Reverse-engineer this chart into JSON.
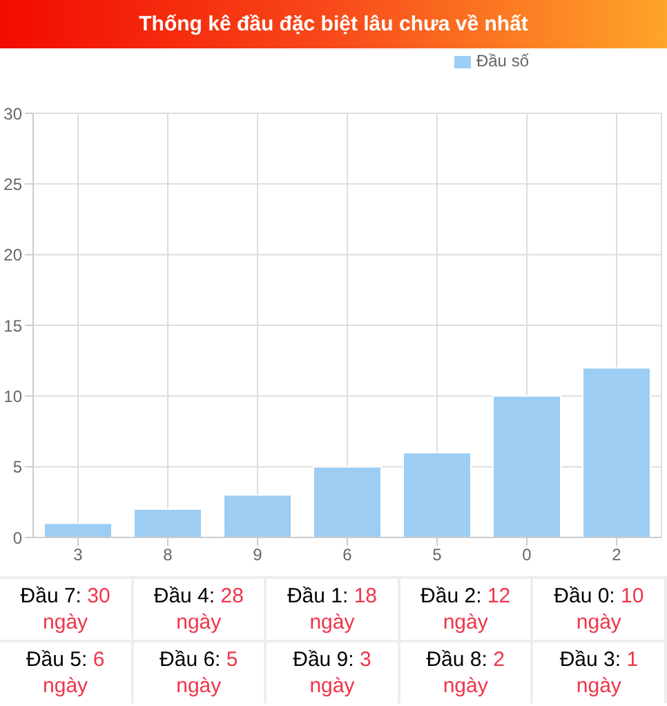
{
  "chart_data": {
    "type": "bar",
    "title": "Thống kê đầu đặc biệt lâu chưa về nhất",
    "categories": [
      "3",
      "8",
      "9",
      "6",
      "5",
      "0",
      "2"
    ],
    "series": [
      {
        "name": "Đầu số",
        "color": "#9dcdf3",
        "values": [
          1,
          2,
          3,
          5,
          6,
          10,
          12
        ]
      }
    ],
    "ylim": [
      0,
      30
    ],
    "yticks": [
      0,
      5,
      10,
      15,
      20,
      25,
      30
    ],
    "grid": true,
    "legend": "top right",
    "annotations": [
      "Đầu 7: 30 ngày",
      "Đầu 4: 28 ngày",
      "Đầu 1: 18 ngày",
      "Đầu 2: 12 ngày",
      "Đầu 0: 10 ngày",
      "Đầu 5: 6 ngày",
      "Đầu 6: 5 ngày",
      "Đầu 9: 3 ngày",
      "Đầu 8: 2 ngày",
      "Đầu 3: 1 ngày"
    ]
  }
}
